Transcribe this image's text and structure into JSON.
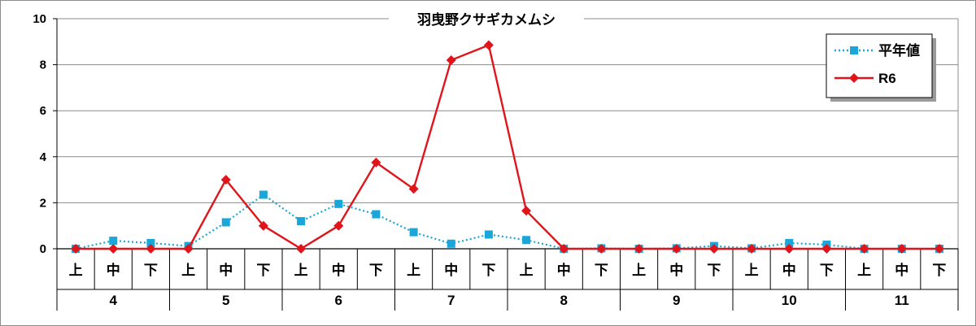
{
  "chart_data": {
    "type": "line",
    "title": "羽曳野クサギカメムシ",
    "ylim": [
      0,
      10
    ],
    "yticks": [
      "0",
      "2",
      "4",
      "6",
      "8",
      "10"
    ],
    "xlabel": "",
    "ylabel": "",
    "grid": true,
    "legend_position": "top-right",
    "months": [
      "4",
      "5",
      "6",
      "7",
      "8",
      "9",
      "10",
      "11"
    ],
    "periods": [
      "上",
      "中",
      "下"
    ],
    "categories": [
      "上",
      "中",
      "下",
      "上",
      "中",
      "下",
      "上",
      "中",
      "下",
      "上",
      "中",
      "下",
      "上",
      "中",
      "下",
      "上",
      "中",
      "下",
      "上",
      "中",
      "下",
      "上",
      "中",
      "下"
    ],
    "series": [
      {
        "name": "平年値",
        "color": "#1aa6d9",
        "marker": "square",
        "dash": "dotted",
        "values": [
          0,
          0.35,
          0.25,
          0.12,
          1.15,
          2.35,
          1.2,
          1.95,
          1.5,
          0.72,
          0.22,
          0.62,
          0.38,
          0,
          0.02,
          0,
          0.02,
          0.12,
          0.02,
          0.25,
          0.18,
          0,
          0,
          0
        ]
      },
      {
        "name": "R6",
        "color": "#e0151b",
        "marker": "diamond",
        "dash": "solid",
        "values": [
          0,
          0,
          0,
          0,
          3.0,
          1.0,
          0,
          1.0,
          3.75,
          2.6,
          8.2,
          8.85,
          1.65,
          0,
          0,
          0,
          0,
          0,
          0,
          0,
          0,
          0,
          0,
          0
        ]
      }
    ]
  }
}
